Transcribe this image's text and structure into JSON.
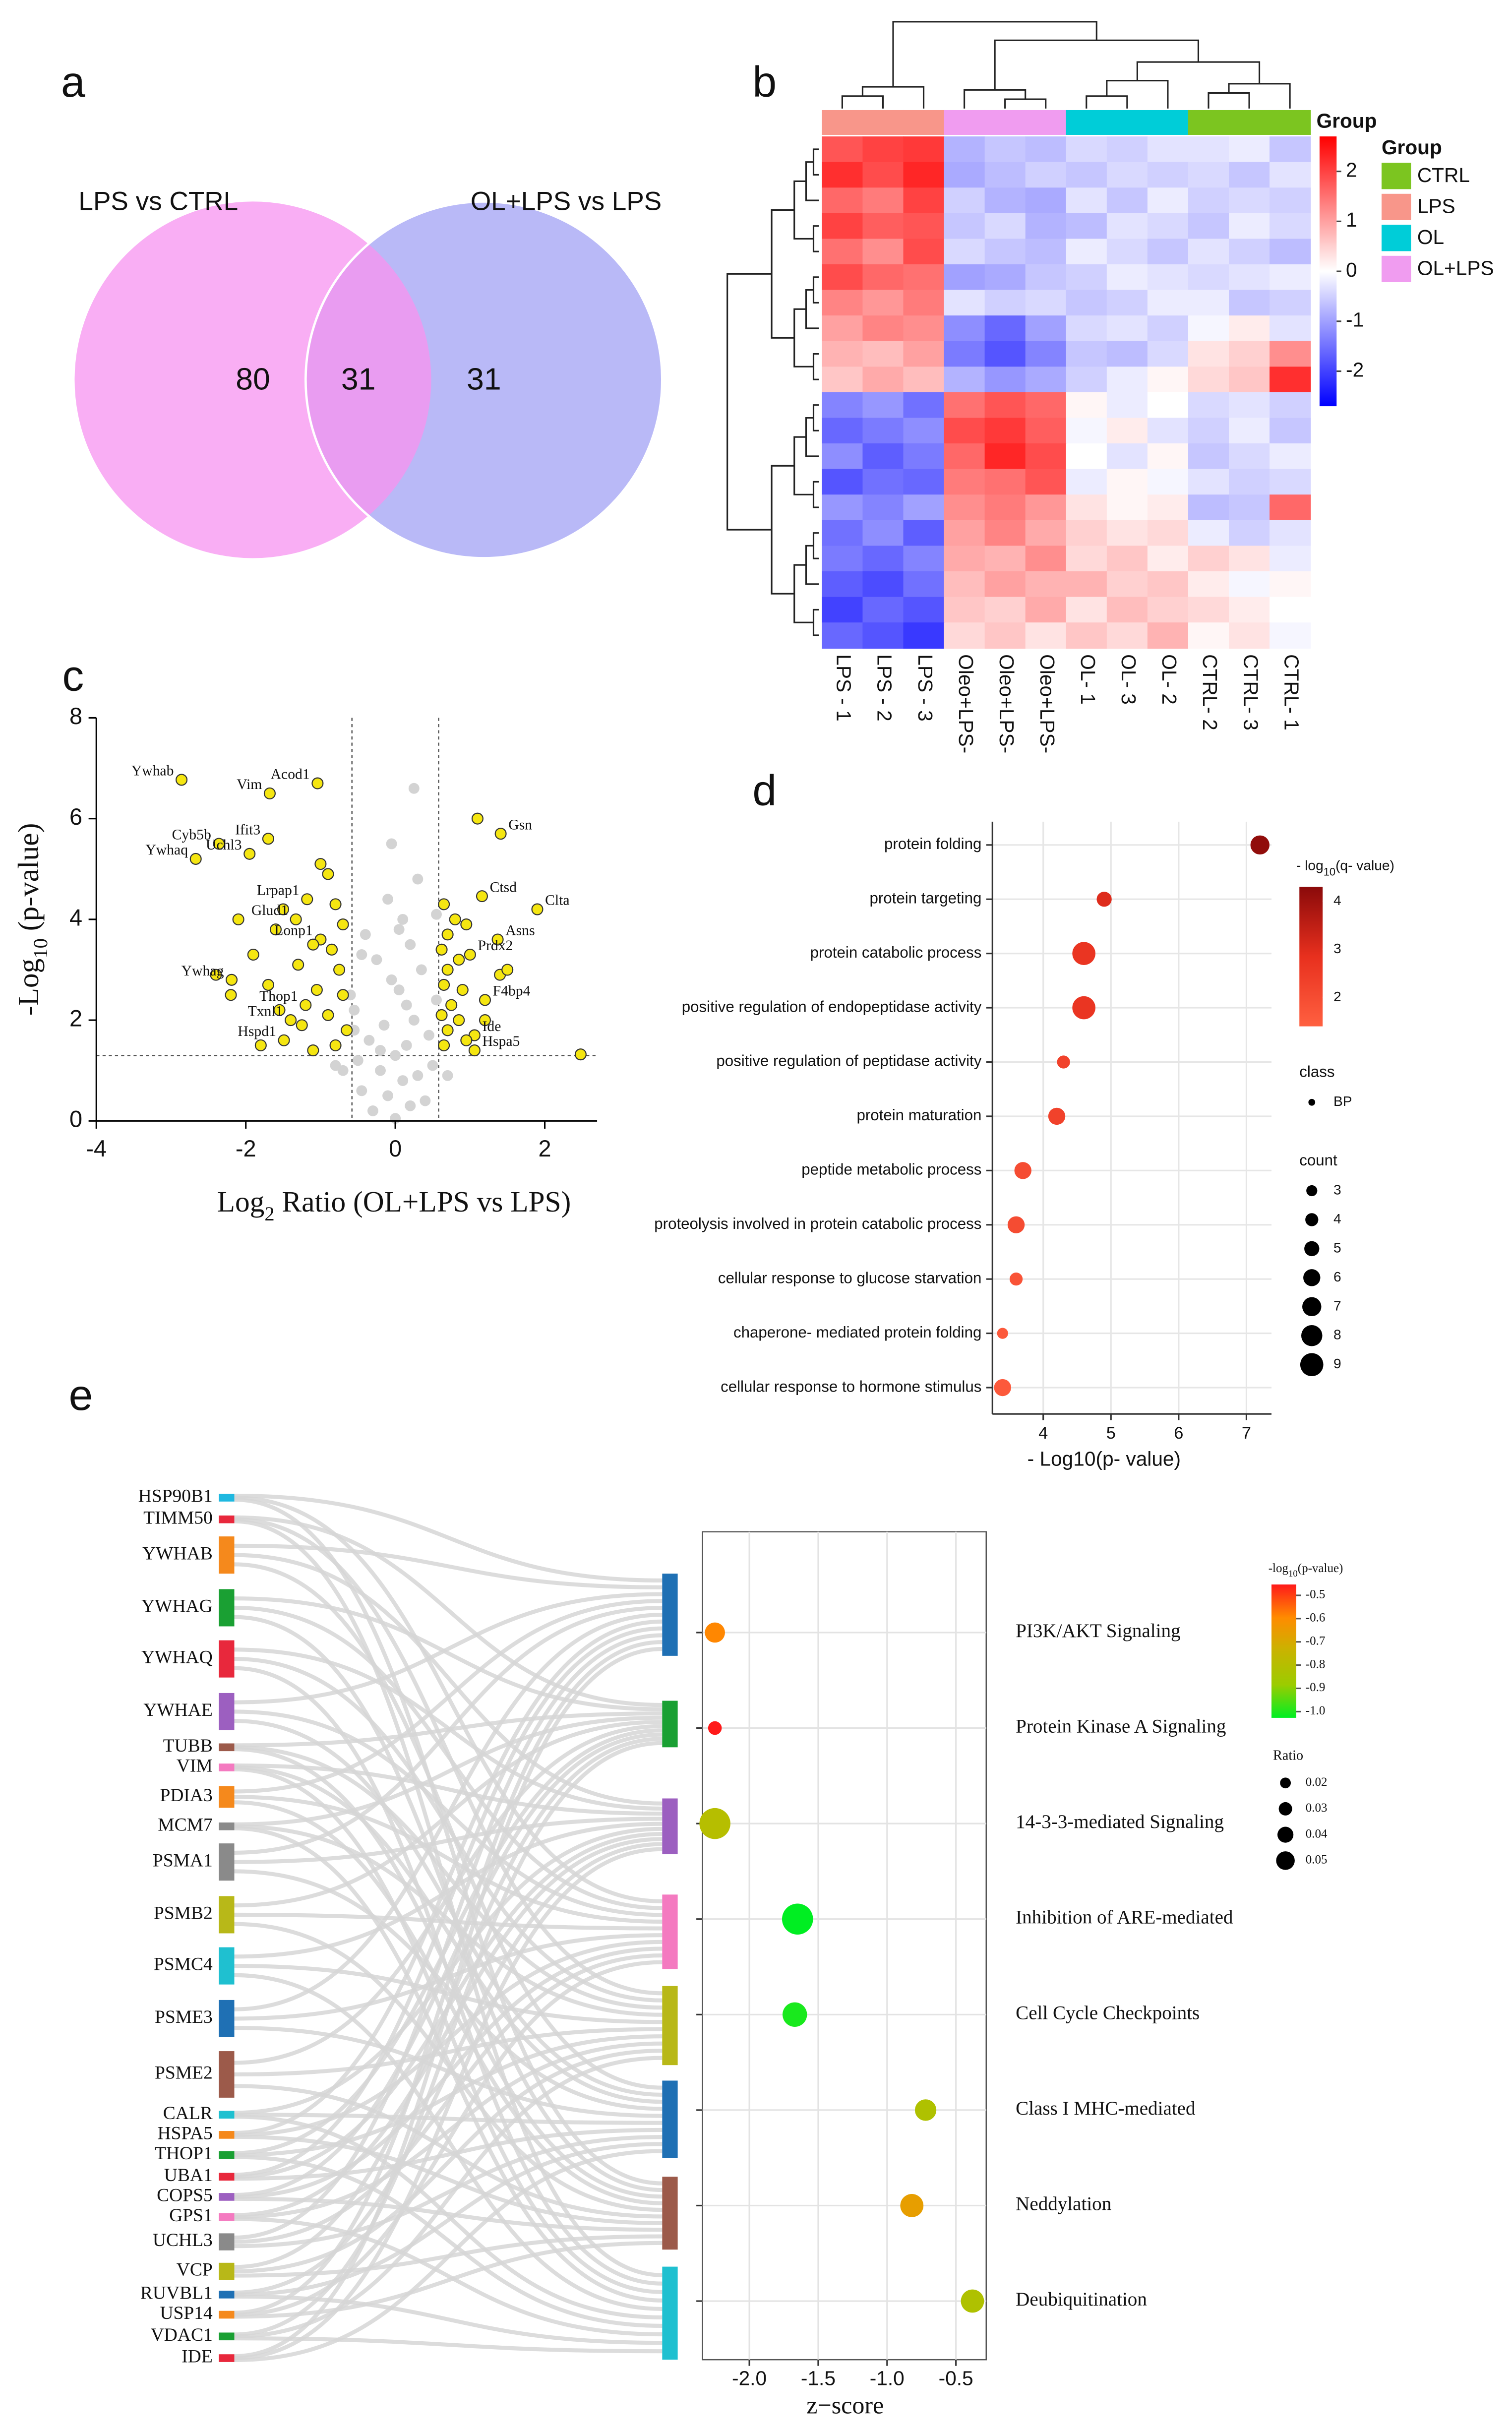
{
  "chart_data": [
    {
      "type": "venn",
      "panel": "a",
      "sets": [
        "LPS vs CTRL",
        "OL+LPS vs LPS"
      ],
      "values": [
        80,
        31,
        31
      ],
      "colors": [
        "#f9aef4",
        "#b9b9f7",
        "#e99cf1"
      ]
    },
    {
      "type": "heatmap",
      "panel": "b",
      "annotation_label": "Group",
      "columns": [
        "LPS - 1",
        "LPS - 2",
        "LPS - 3",
        "Oleo+LPS-",
        "Oleo+LPS-",
        "Oleo+LPS-",
        "OL- 1",
        "OL- 3",
        "OL- 2",
        "CTRL- 2",
        "CTRL- 3",
        "CTRL- 1"
      ],
      "column_colors": [
        "#f8968a",
        "#f8968a",
        "#f8968a",
        "#f09cf0",
        "#f09cf0",
        "#f09cf0",
        "#00cdd8",
        "#00cdd8",
        "#00cdd8",
        "#7cc520",
        "#7cc520",
        "#7cc520"
      ],
      "values": [
        [
          1.8,
          2.0,
          2.1,
          -0.8,
          -0.6,
          -0.7,
          -0.4,
          -0.5,
          -0.3,
          -0.3,
          -0.2,
          -0.6
        ],
        [
          2.2,
          1.9,
          2.3,
          -0.9,
          -0.7,
          -0.5,
          -0.6,
          -0.4,
          -0.5,
          -0.4,
          -0.6,
          -0.3
        ],
        [
          1.6,
          1.4,
          2.0,
          -0.5,
          -0.8,
          -0.9,
          -0.3,
          -0.6,
          -0.2,
          -0.5,
          -0.4,
          -0.5
        ],
        [
          2.0,
          1.7,
          1.8,
          -0.6,
          -0.4,
          -0.8,
          -0.7,
          -0.3,
          -0.4,
          -0.6,
          -0.2,
          -0.4
        ],
        [
          1.5,
          1.2,
          1.9,
          -0.4,
          -0.6,
          -0.7,
          -0.2,
          -0.4,
          -0.6,
          -0.3,
          -0.5,
          -0.7
        ],
        [
          1.9,
          1.6,
          1.5,
          -1.0,
          -0.9,
          -0.6,
          -0.5,
          -0.2,
          -0.3,
          -0.4,
          -0.3,
          -0.2
        ],
        [
          1.3,
          1.1,
          1.4,
          -0.3,
          -0.5,
          -0.4,
          -0.6,
          -0.5,
          -0.2,
          -0.2,
          -0.6,
          -0.5
        ],
        [
          1.0,
          1.3,
          1.2,
          -1.2,
          -1.6,
          -1.0,
          -0.4,
          -0.3,
          -0.5,
          -0.1,
          0.2,
          -0.3
        ],
        [
          0.8,
          0.7,
          1.0,
          -1.4,
          -1.8,
          -1.3,
          -0.6,
          -0.7,
          -0.4,
          0.3,
          0.5,
          1.2
        ],
        [
          0.6,
          0.9,
          0.7,
          -0.8,
          -1.1,
          -0.9,
          -0.5,
          -0.2,
          0.1,
          0.4,
          0.6,
          2.2
        ],
        [
          -1.3,
          -1.1,
          -1.5,
          1.5,
          1.8,
          1.6,
          0.1,
          -0.2,
          0.0,
          -0.4,
          -0.3,
          -0.5
        ],
        [
          -1.6,
          -1.4,
          -1.2,
          1.9,
          2.1,
          1.7,
          -0.1,
          0.2,
          -0.3,
          -0.5,
          -0.2,
          -0.6
        ],
        [
          -1.2,
          -1.7,
          -1.4,
          1.6,
          2.3,
          1.9,
          0.0,
          -0.3,
          0.1,
          -0.6,
          -0.4,
          -0.2
        ],
        [
          -1.8,
          -1.5,
          -1.6,
          1.4,
          1.5,
          1.8,
          -0.2,
          0.1,
          -0.1,
          -0.3,
          -0.5,
          -0.4
        ],
        [
          -1.1,
          -1.3,
          -1.0,
          1.2,
          1.4,
          1.1,
          0.3,
          0.1,
          0.2,
          -0.7,
          -0.6,
          1.6
        ],
        [
          -1.5,
          -1.2,
          -1.7,
          1.0,
          1.3,
          0.9,
          0.5,
          0.3,
          0.4,
          -0.2,
          -0.5,
          -0.3
        ],
        [
          -1.4,
          -1.6,
          -1.3,
          0.9,
          0.8,
          1.2,
          0.4,
          0.6,
          0.2,
          0.5,
          0.3,
          -0.2
        ],
        [
          -1.7,
          -1.9,
          -1.5,
          0.7,
          1.0,
          0.8,
          0.8,
          0.5,
          0.6,
          0.2,
          -0.1,
          0.1
        ],
        [
          -2.0,
          -1.6,
          -1.8,
          0.6,
          0.5,
          0.9,
          0.3,
          0.7,
          0.5,
          0.4,
          0.2,
          0.0
        ],
        [
          -1.6,
          -1.8,
          -2.1,
          0.4,
          0.6,
          0.3,
          0.6,
          0.4,
          0.8,
          0.1,
          0.3,
          -0.1
        ]
      ],
      "clim": [
        -2.7,
        2.7
      ],
      "cticks": [
        2,
        1,
        0,
        -1,
        -2
      ],
      "colors": [
        "#0000ff",
        "#ffffff",
        "#ff0000"
      ],
      "legend": {
        "title": "Group",
        "names": [
          "CTRL",
          "LPS",
          "OL",
          "OL+LPS"
        ],
        "colors": [
          "#7cc520",
          "#f8968a",
          "#00cdd8",
          "#f09cf0"
        ]
      }
    },
    {
      "type": "volcano",
      "panel": "c",
      "xlabel": [
        "Log",
        "2",
        " Ratio (OL+LPS vs LPS)"
      ],
      "ylabel": [
        "-Log",
        "10",
        " (p-value)"
      ],
      "xlim": [
        -4,
        2.7
      ],
      "ylim": [
        0,
        8
      ],
      "xticks": [
        -4,
        -2,
        0,
        2
      ],
      "yticks": [
        0,
        2,
        4,
        6,
        8
      ],
      "thresholds": {
        "x": [
          -0.58,
          0.58
        ],
        "y": 1.3
      },
      "series": [
        {
          "color": "#f5e611",
          "x": [
            -2.86,
            -1.04,
            -1.68,
            -2.36,
            -1.7,
            -1.95,
            -2.67,
            -1.18,
            -1.33,
            -1.0,
            -2.19,
            -1.2,
            -1.4,
            -1.49,
            1.41,
            1.16,
            1.9,
            1.37,
            1.0,
            1.2,
            1.06,
            1.06,
            1.1,
            2.48,
            -1.0,
            -0.9,
            -1.5,
            -0.8,
            -2.1,
            -1.6,
            -0.7,
            -1.1,
            -0.85,
            -1.9,
            -1.3,
            -0.75,
            -2.4,
            -1.7,
            -1.05,
            -0.7,
            -1.55,
            -0.9,
            -1.25,
            -0.65,
            -1.8,
            -0.8,
            -1.1,
            -2.2,
            0.65,
            0.8,
            0.7,
            0.95,
            0.62,
            0.85,
            0.7,
            1.4,
            0.65,
            0.9,
            0.75,
            0.62,
            0.85,
            0.7,
            0.95,
            0.65,
            1.5,
            1.2
          ],
          "y": [
            6.77,
            6.7,
            6.5,
            5.5,
            5.6,
            5.3,
            5.2,
            4.4,
            4.0,
            3.6,
            2.8,
            2.3,
            2.0,
            1.6,
            5.7,
            4.46,
            4.2,
            3.6,
            3.3,
            2.4,
            1.7,
            1.4,
            6.0,
            1.32,
            5.1,
            4.9,
            4.2,
            4.3,
            4.0,
            3.8,
            3.9,
            3.5,
            3.4,
            3.3,
            3.1,
            3.0,
            2.9,
            2.7,
            2.6,
            2.5,
            2.2,
            2.1,
            1.9,
            1.8,
            1.5,
            1.5,
            1.4,
            2.5,
            4.3,
            4.0,
            3.7,
            3.9,
            3.4,
            3.2,
            3.0,
            2.9,
            2.7,
            2.6,
            2.3,
            2.1,
            2.0,
            1.8,
            1.6,
            1.5,
            3.0,
            2.0
          ],
          "labels": [
            "Ywhab",
            "Acod1",
            "Vim",
            "Cyb5b",
            "Ifit3",
            "Uchl3",
            "Ywhaq",
            "Lrpap1",
            "Glud1",
            "Lonp1",
            "Ywhag",
            "Thop1",
            "Txnl1",
            "Hspd1",
            "Gsn",
            "Ctsd",
            "Clta",
            "Asns",
            "Prdx2",
            "F4bp4",
            "Ide",
            "Hspa5",
            null,
            null,
            null,
            null,
            null,
            null,
            null,
            null,
            null,
            null,
            null,
            null,
            null,
            null,
            null,
            null,
            null,
            null,
            null,
            null,
            null,
            null,
            null,
            null,
            null,
            null,
            null,
            null,
            null,
            null,
            null,
            null,
            null,
            null,
            null,
            null,
            null,
            null,
            null,
            null,
            null,
            null,
            null,
            null
          ]
        },
        {
          "color": "#d3d3d3",
          "x": [
            -0.3,
            0.2,
            -0.1,
            0.4,
            -0.45,
            0.1,
            0.3,
            -0.2,
            0.5,
            -0.5,
            0.0,
            0.15,
            -0.35,
            0.45,
            -0.15,
            0.25,
            -0.55,
            0.55,
            0.05,
            -0.05,
            0.35,
            -0.25,
            0.2,
            -0.4,
            0.1,
            -0.6,
            -0.1,
            0.3,
            0.0,
            -0.2,
            0.15,
            -0.45,
            -0.05,
            0.25,
            -0.7,
            0.7,
            -0.55,
            0.05,
            0.55,
            -0.8
          ],
          "y": [
            0.2,
            0.3,
            0.5,
            0.4,
            0.6,
            0.8,
            0.9,
            1.0,
            1.1,
            1.2,
            1.3,
            1.5,
            1.6,
            1.7,
            1.9,
            2.0,
            2.2,
            2.4,
            2.6,
            2.8,
            3.0,
            3.2,
            3.5,
            3.7,
            4.0,
            2.5,
            4.4,
            4.8,
            0.05,
            1.4,
            2.3,
            3.3,
            5.5,
            6.6,
            1.0,
            0.9,
            1.8,
            3.8,
            4.1,
            1.1
          ]
        }
      ]
    },
    {
      "type": "dot",
      "panel": "d",
      "x_label": "- Log10(p- value)",
      "categories": [
        "protein folding",
        "protein targeting",
        "protein catabolic process",
        "positive regulation of endopeptidase activity",
        "positive regulation of peptidase activity",
        "protein maturation",
        "peptide metabolic process",
        "proteolysis involved in protein catabolic process",
        "cellular response to glucose starvation",
        "chaperone- mediated protein folding",
        "cellular response to hormone stimulus"
      ],
      "values": [
        7.2,
        4.9,
        4.6,
        4.6,
        4.3,
        4.2,
        3.7,
        3.6,
        3.6,
        3.4,
        3.4
      ],
      "counts": [
        7,
        5,
        9,
        9,
        4,
        6,
        6,
        6,
        4,
        3,
        6
      ],
      "q_values": [
        4.2,
        3.0,
        2.7,
        2.7,
        2.3,
        2.3,
        2.0,
        2.0,
        1.8,
        1.6,
        1.6
      ],
      "xlim": [
        3.25,
        7.37
      ],
      "xticks": [
        4,
        5,
        6,
        7
      ],
      "color_legend": {
        "title": [
          "- log",
          "10",
          "(q- value)"
        ],
        "clim": [
          1.4,
          4.3
        ],
        "ticks": [
          4,
          3,
          2
        ],
        "colors": [
          "#ff6040",
          "#e8301e",
          "#8b0a0a"
        ]
      },
      "class_legend": {
        "title": "class",
        "names": [
          "BP"
        ]
      },
      "count_legend": {
        "title": "count",
        "values": [
          3,
          4,
          5,
          6,
          7,
          8,
          9
        ]
      }
    },
    {
      "type": "sankey_dot",
      "panel": "e",
      "x_label": "z−score",
      "genes": [
        "HSP90B1",
        "TIMM50",
        "YWHAB",
        "YWHAG",
        "YWHAQ",
        "YWHAE",
        "TUBB",
        "VIM",
        "PDIA3",
        "MCM7",
        "PSMA1",
        "PSMB2",
        "PSMC4",
        "PSME3",
        "PSME2",
        "CALR",
        "HSPA5",
        "THOP1",
        "UBA1",
        "COPS5",
        "GPS1",
        "UCHL3",
        "VCP",
        "RUVBL1",
        "USP14",
        "VDAC1",
        "IDE"
      ],
      "gene_colors": [
        "#1fb8e0",
        "#e8283c",
        "#f5891c",
        "#1aa033",
        "#e8283c",
        "#9c5fc0",
        "#9c5a4a",
        "#f47ac0",
        "#f5891c",
        "#8a8a8a",
        "#8a8a8a",
        "#b8b818",
        "#1fc0d0",
        "#1f70b4",
        "#9c5a4a",
        "#1fc0d0",
        "#f5891c",
        "#1aa033",
        "#e8283c",
        "#9c5fc0",
        "#f47ac0",
        "#8a8a8a",
        "#b8b818",
        "#1f70b4",
        "#f5891c",
        "#1aa033",
        "#e8283c"
      ],
      "categories": [
        "PI3K/AKT Signaling",
        "Protein Kinase A Signaling",
        "14-3-3-mediated Signaling",
        "Inhibition of ARE-mediated",
        "Cell Cycle Checkpoints",
        "Class I MHC-mediated",
        "Neddylation",
        "Deubiquitination"
      ],
      "category_colors": [
        "#1f70b4",
        "#1aa033",
        "#9c5fc0",
        "#f47ac0",
        "#b8b818",
        "#1f70b4",
        "#9c5a4a",
        "#1fc0d0"
      ],
      "values": [
        -2.25,
        -2.25,
        -2.25,
        -1.65,
        -1.67,
        -0.72,
        -0.82,
        -0.38
      ],
      "ratios": [
        0.025,
        0.01,
        0.05,
        0.05,
        0.035,
        0.028,
        0.032,
        0.032
      ],
      "p_values": [
        -0.62,
        -0.5,
        -0.8,
        -1.0,
        -0.98,
        -0.82,
        -0.68,
        -0.82
      ],
      "xlim": [
        -2.34,
        -0.28
      ],
      "xticks": [
        {
          "value": -2.0,
          "label": "-2.0"
        },
        -1.5,
        {
          "value": -1.0,
          "label": "-1.0"
        },
        -0.5
      ],
      "color_legend": {
        "title": [
          "-log",
          "10",
          "(p-value)"
        ],
        "clim": [
          -1.0,
          -0.5
        ],
        "ticks": [
          -0.5,
          -0.6,
          -0.7,
          -0.8,
          -0.9,
          {
            "value": -1.0,
            "label": "-1.0"
          }
        ],
        "colors": [
          "#00ee22",
          "#9ccc00",
          "#c8b400",
          "#ff8c00",
          "#ff1a1a"
        ]
      },
      "ratio_legend": {
        "title": "Ratio",
        "values": [
          0.02,
          0.03,
          0.04,
          0.05
        ]
      }
    }
  ]
}
